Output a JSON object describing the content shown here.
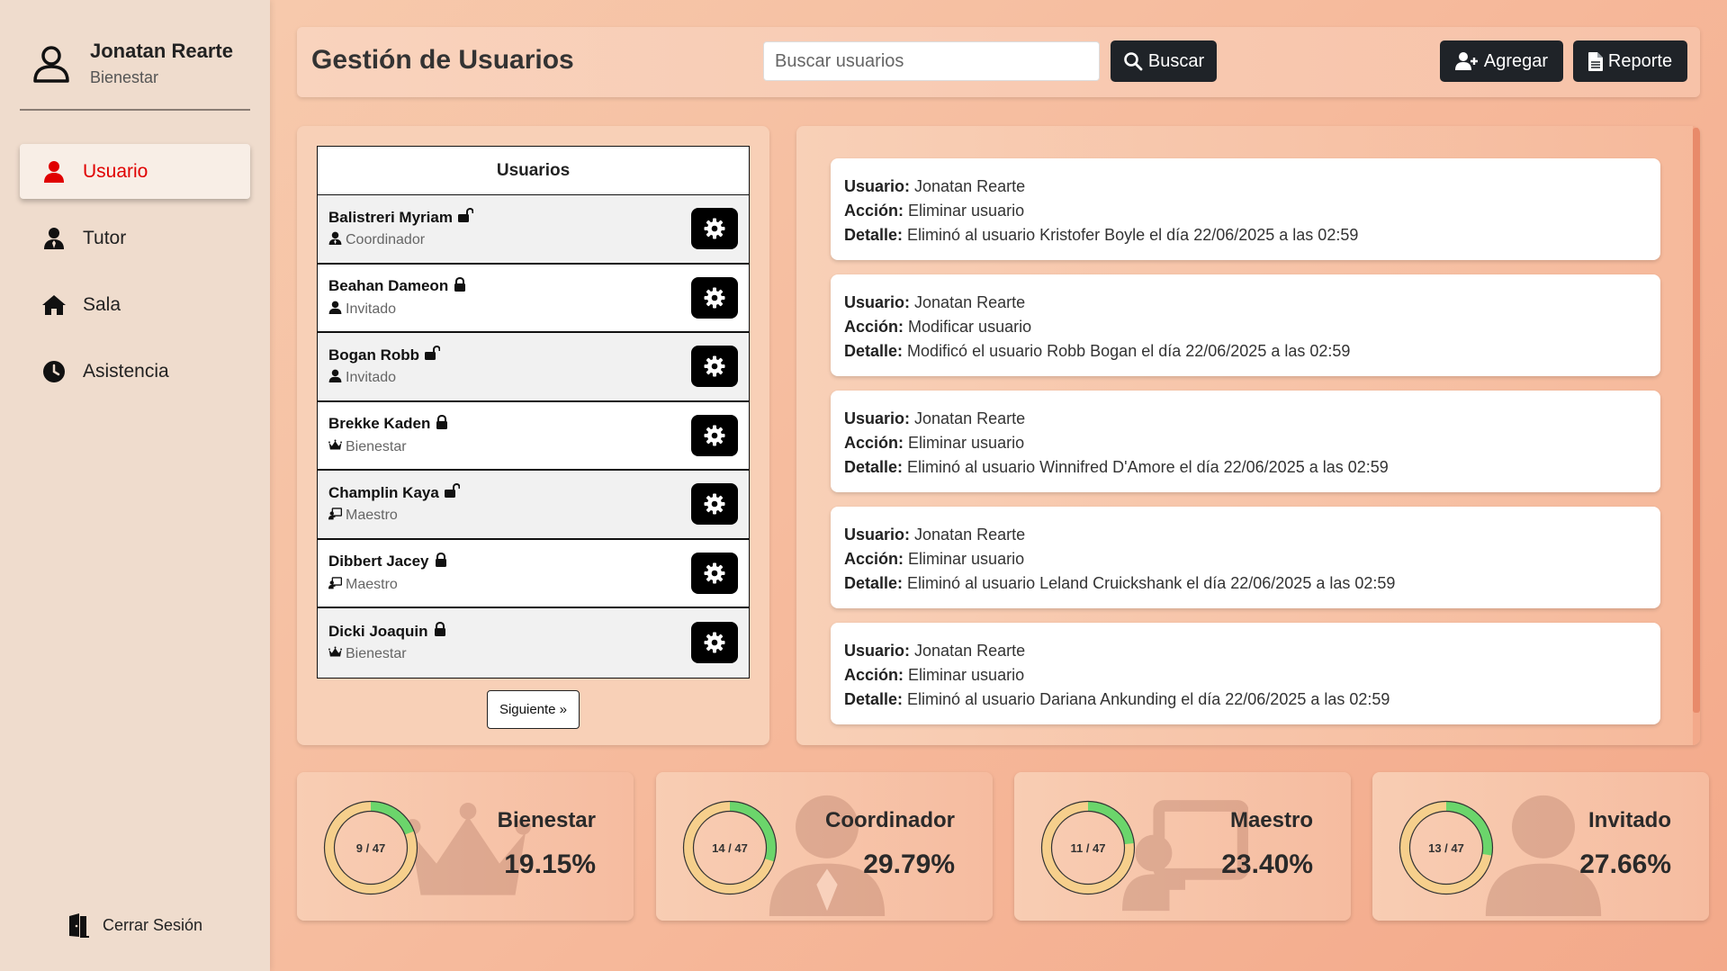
{
  "colors": {
    "accent": "#e00000",
    "dark_button": "#1f2328",
    "donut_track": "#f6cf8c",
    "donut_fill": "#6bd56b"
  },
  "sidebar": {
    "user_name": "Jonatan Rearte",
    "user_role": "Bienestar",
    "items": [
      {
        "label": "Usuario",
        "icon": "user-icon",
        "active": true
      },
      {
        "label": "Tutor",
        "icon": "user-tie-icon",
        "active": false
      },
      {
        "label": "Sala",
        "icon": "home-icon",
        "active": false
      },
      {
        "label": "Asistencia",
        "icon": "clock-icon",
        "active": false
      }
    ],
    "logout_label": "Cerrar Sesión"
  },
  "header": {
    "title": "Gestión de Usuarios",
    "search_placeholder": "Buscar usuarios",
    "search_button": "Buscar",
    "add_button": "Agregar",
    "report_button": "Reporte"
  },
  "users": {
    "table_title": "Usuarios",
    "rows": [
      {
        "name": "Balistreri Myriam",
        "role": "Coordinador",
        "role_icon": "user-tie-icon",
        "lock": "unlocked"
      },
      {
        "name": "Beahan Dameon",
        "role": "Invitado",
        "role_icon": "user-icon",
        "lock": "locked"
      },
      {
        "name": "Bogan Robb",
        "role": "Invitado",
        "role_icon": "user-icon",
        "lock": "unlocked"
      },
      {
        "name": "Brekke Kaden",
        "role": "Bienestar",
        "role_icon": "crown-icon",
        "lock": "locked"
      },
      {
        "name": "Champlin Kaya",
        "role": "Maestro",
        "role_icon": "chalkboard-teacher-icon",
        "lock": "unlocked"
      },
      {
        "name": "Dibbert Jacey",
        "role": "Maestro",
        "role_icon": "chalkboard-teacher-icon",
        "lock": "locked"
      },
      {
        "name": "Dicki Joaquin",
        "role": "Bienestar",
        "role_icon": "crown-icon",
        "lock": "locked"
      }
    ],
    "next_button": "Siguiente »"
  },
  "log": {
    "labels": {
      "user": "Usuario:",
      "action": "Acción:",
      "detail": "Detalle:"
    },
    "entries": [
      {
        "user": "Jonatan Rearte",
        "action": "Eliminar usuario",
        "detail": "Eliminó al usuario Kristofer Boyle el día 22/06/2025 a las 02:59"
      },
      {
        "user": "Jonatan Rearte",
        "action": "Modificar usuario",
        "detail": "Modificó el usuario Robb Bogan el día 22/06/2025 a las 02:59"
      },
      {
        "user": "Jonatan Rearte",
        "action": "Eliminar usuario",
        "detail": "Eliminó al usuario Winnifred D'Amore el día 22/06/2025 a las 02:59"
      },
      {
        "user": "Jonatan Rearte",
        "action": "Eliminar usuario",
        "detail": "Eliminó al usuario Leland Cruickshank el día 22/06/2025 a las 02:59"
      },
      {
        "user": "Jonatan Rearte",
        "action": "Eliminar usuario",
        "detail": "Eliminó al usuario Dariana Ankunding el día 22/06/2025 a las 02:59"
      }
    ]
  },
  "stats": [
    {
      "title": "Bienestar",
      "count": 9,
      "total": 47,
      "count_label": "9 / 47",
      "percent": "19.15%",
      "fraction": 0.1915,
      "icon": "crown-icon"
    },
    {
      "title": "Coordinador",
      "count": 14,
      "total": 47,
      "count_label": "14 / 47",
      "percent": "29.79%",
      "fraction": 0.2979,
      "icon": "user-tie-icon"
    },
    {
      "title": "Maestro",
      "count": 11,
      "total": 47,
      "count_label": "11 / 47",
      "percent": "23.40%",
      "fraction": 0.234,
      "icon": "chalkboard-teacher-icon"
    },
    {
      "title": "Invitado",
      "count": 13,
      "total": 47,
      "count_label": "13 / 47",
      "percent": "27.66%",
      "fraction": 0.2766,
      "icon": "user-icon"
    }
  ]
}
